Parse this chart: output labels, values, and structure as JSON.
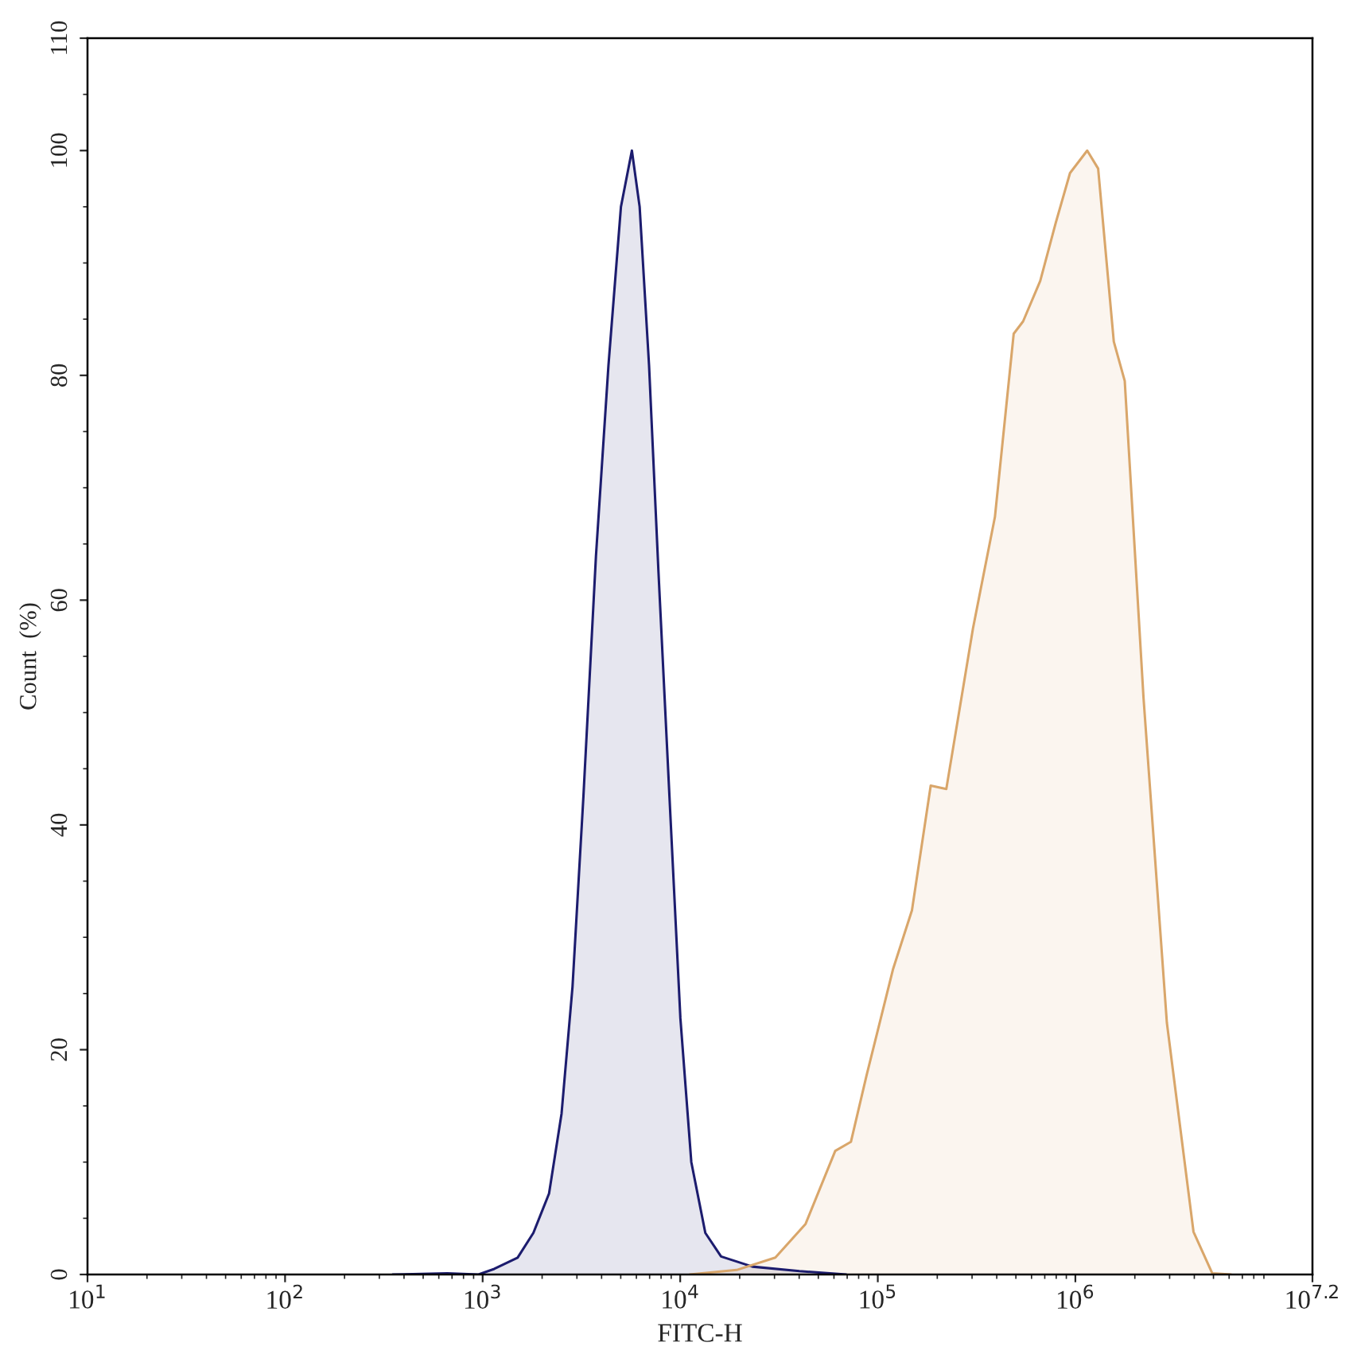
{
  "chart_data": {
    "type": "area",
    "xlabel": "FITC-H",
    "ylabel": "Count  (%)",
    "log": "x",
    "xlim": [
      10,
      15848932
    ],
    "xticks": [
      {
        "value": 10,
        "label": "10$^{1}$"
      },
      {
        "value": 100,
        "label": "10$^{2}$"
      },
      {
        "value": 1000,
        "label": "10$^{3}$"
      },
      {
        "value": 10000,
        "label": "10$^{4}$"
      },
      {
        "value": 100000,
        "label": "10$^{5}$"
      },
      {
        "value": 1000000,
        "label": "10$^{6}$"
      },
      {
        "value": 15848932,
        "label": "10$^{7.2}$"
      }
    ],
    "ylim": [
      0,
      110
    ],
    "yticks": [
      0,
      20,
      40,
      60,
      80,
      100,
      110
    ],
    "grid": false,
    "legend": false,
    "series": [
      {
        "color": "#1c1c6e",
        "x": [
          350,
          662,
          953,
          1145,
          1503,
          1806,
          2168,
          2508,
          2850,
          3238,
          3745,
          4333,
          5012,
          5693,
          6232,
          6954,
          7762,
          8817,
          10020,
          11380,
          13400,
          16100,
          23200,
          40100,
          69200
        ],
        "values": [
          0,
          0.1,
          0,
          0.5,
          1.5,
          3.7,
          7.2,
          14.3,
          25.6,
          42.6,
          63.9,
          80.9,
          95,
          100,
          95,
          80.9,
          62.5,
          42.6,
          22.8,
          10,
          3.7,
          1.6,
          0.7,
          0.3,
          0
        ]
      },
      {
        "color": "#d9a66a",
        "x": [
          11170,
          19300,
          30300,
          43100,
          60900,
          73100,
          87700,
          119600,
          148900,
          185300,
          222200,
          303300,
          391600,
          487300,
          543700,
          664000,
          796500,
          939600,
          1148000,
          1304000,
          1565000,
          1778000,
          2213000,
          2905000,
          3962000,
          4932000,
          6138000
        ],
        "values": [
          0,
          0.4,
          1.5,
          4.5,
          11,
          11.8,
          17.7,
          27.2,
          32.4,
          43.5,
          43.2,
          57.5,
          67.4,
          83.7,
          84.8,
          88.4,
          93.6,
          98,
          100,
          98.4,
          83,
          79.5,
          51.3,
          22.4,
          3.8,
          0.1,
          0
        ]
      }
    ]
  }
}
